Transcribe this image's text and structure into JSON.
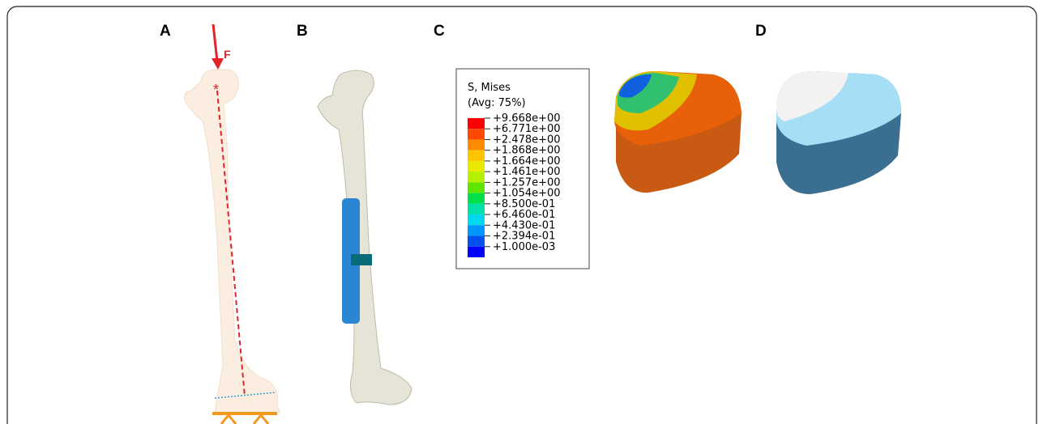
{
  "panels": {
    "a": "A",
    "b": "B",
    "c": "C",
    "d": "D"
  },
  "force_label": "F",
  "legend": {
    "title": "S, Mises",
    "subtitle": "(Avg: 75%)",
    "labels": [
      "+9.668e+00",
      "+6.771e+00",
      "+2.478e+00",
      "+1.868e+00",
      "+1.664e+00",
      "+1.461e+00",
      "+1.257e+00",
      "+1.054e+00",
      "+8.500e-01",
      "+6.460e-01",
      "+4.430e-01",
      "+2.394e-01",
      "+1.000e-03"
    ],
    "colors": [
      "#ff0000",
      "#ff4800",
      "#ff8a00",
      "#ffc400",
      "#e8e800",
      "#b4f000",
      "#5ee600",
      "#00e04a",
      "#00e0a8",
      "#00d8f0",
      "#0096ff",
      "#0050f0",
      "#0000ff"
    ]
  }
}
